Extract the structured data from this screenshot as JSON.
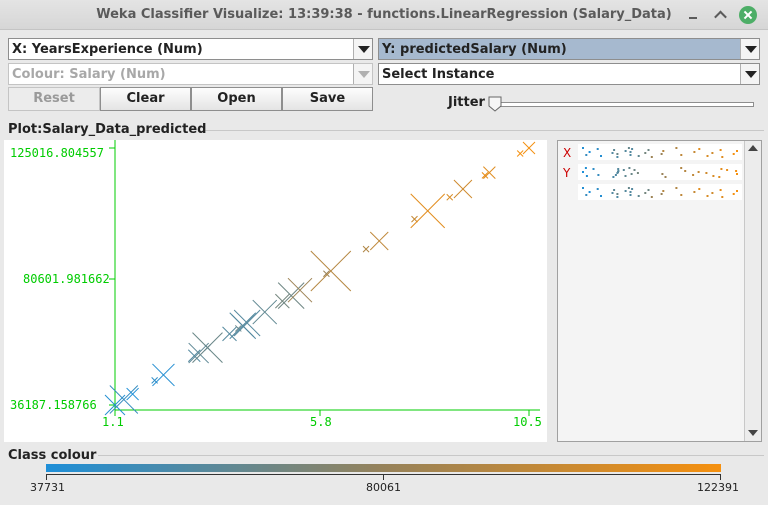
{
  "window": {
    "title": "Weka Classifier Visualize: 13:39:38 - functions.LinearRegression (Salary_Data)"
  },
  "controls": {
    "x_axis": "X: YearsExperience (Num)",
    "y_axis": "Y: predictedSalary (Num)",
    "colour": "Colour: Salary (Num)",
    "instance": "Select Instance",
    "reset_label": "Reset",
    "clear_label": "Clear",
    "open_label": "Open",
    "save_label": "Save",
    "jitter_label": "Jitter",
    "jitter_value": 0
  },
  "plot": {
    "title": "Plot:Salary_Data_predicted",
    "x_ticks": [
      "1.1",
      "5.8",
      "10.5"
    ],
    "y_ticks": [
      "125016.804557",
      "80601.981662",
      "36187.158766"
    ]
  },
  "attr_panel": {
    "labels": [
      "X",
      "Y"
    ]
  },
  "class_colour": {
    "title": "Class colour",
    "labels": [
      "37731",
      "80061",
      "122391"
    ],
    "gradient_start": "#1e8fd8",
    "gradient_end": "#f5900f"
  },
  "colors": {
    "axis": "#00cc00",
    "low": "#1e8fd8",
    "high": "#f5900f"
  },
  "chart_data": {
    "type": "scatter",
    "title": "Plot:Salary_Data_predicted",
    "xlabel": "YearsExperience",
    "ylabel": "predictedSalary",
    "xlim": [
      1.1,
      10.5
    ],
    "ylim": [
      36187.158766,
      125016.804557
    ],
    "x_ticks": [
      "1.1",
      "5.8",
      "10.5"
    ],
    "y_ticks": [
      "36187.158766",
      "80601.981662",
      "125016.804557"
    ],
    "colour_by": "Salary",
    "colour_range": [
      37731,
      122391
    ],
    "marker": "cross, size proportional to prediction error",
    "points": [
      {
        "x": 1.1,
        "y": 36187,
        "salary": 39343,
        "size": 10
      },
      {
        "x": 1.3,
        "y": 38077,
        "salary": 46205,
        "size": 14
      },
      {
        "x": 1.5,
        "y": 39967,
        "salary": 37731,
        "size": 6
      },
      {
        "x": 2.0,
        "y": 44692,
        "salary": 43525,
        "size": 3
      },
      {
        "x": 2.2,
        "y": 46582,
        "salary": 39891,
        "size": 11
      },
      {
        "x": 2.9,
        "y": 53197,
        "salary": 56642,
        "size": 6
      },
      {
        "x": 3.0,
        "y": 54142,
        "salary": 60150,
        "size": 10
      },
      {
        "x": 3.2,
        "y": 56032,
        "salary": 54445,
        "size": 3
      },
      {
        "x": 3.2,
        "y": 56032,
        "salary": 64445,
        "size": 15
      },
      {
        "x": 3.7,
        "y": 60757,
        "salary": 57189,
        "size": 7
      },
      {
        "x": 3.9,
        "y": 62647,
        "salary": 63218,
        "size": 3
      },
      {
        "x": 4.0,
        "y": 63592,
        "salary": 55794,
        "size": 13
      },
      {
        "x": 4.0,
        "y": 63592,
        "salary": 56957,
        "size": 11
      },
      {
        "x": 4.1,
        "y": 64537,
        "salary": 57081,
        "size": 13
      },
      {
        "x": 4.5,
        "y": 68317,
        "salary": 61111,
        "size": 12
      },
      {
        "x": 4.9,
        "y": 72097,
        "salary": 67938,
        "size": 7
      },
      {
        "x": 5.1,
        "y": 73987,
        "salary": 66029,
        "size": 13
      },
      {
        "x": 5.3,
        "y": 75877,
        "salary": 83088,
        "size": 12
      },
      {
        "x": 5.9,
        "y": 81547,
        "salary": 81363,
        "size": 3
      },
      {
        "x": 6.0,
        "y": 82492,
        "salary": 93940,
        "size": 20
      },
      {
        "x": 6.8,
        "y": 90051,
        "salary": 91738,
        "size": 3
      },
      {
        "x": 7.1,
        "y": 92886,
        "salary": 98273,
        "size": 9
      },
      {
        "x": 7.9,
        "y": 100446,
        "salary": 101302,
        "size": 3
      },
      {
        "x": 8.2,
        "y": 103281,
        "salary": 113812,
        "size": 17
      },
      {
        "x": 8.7,
        "y": 108006,
        "salary": 109431,
        "size": 3
      },
      {
        "x": 9.0,
        "y": 110841,
        "salary": 105582,
        "size": 9
      },
      {
        "x": 9.5,
        "y": 115566,
        "salary": 116969,
        "size": 3
      },
      {
        "x": 9.6,
        "y": 116511,
        "salary": 112635,
        "size": 6
      },
      {
        "x": 10.3,
        "y": 123126,
        "salary": 122391,
        "size": 3
      },
      {
        "x": 10.5,
        "y": 125016,
        "salary": 121872,
        "size": 6
      }
    ]
  }
}
